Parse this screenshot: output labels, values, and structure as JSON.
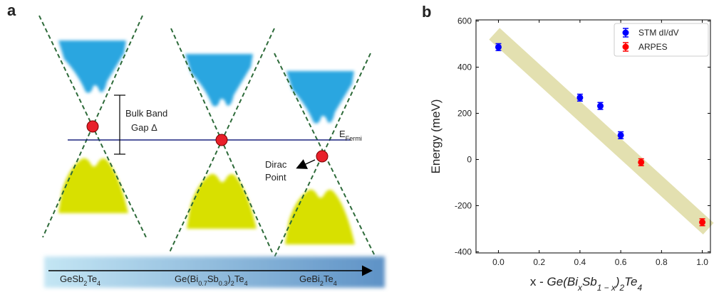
{
  "panel_a": {
    "label": "a",
    "gap_label": [
      "Bulk Band",
      "Gap Δ"
    ],
    "fermi_label": [
      "E",
      "Fermi"
    ],
    "dirac_label": [
      "Dirac",
      "Point"
    ],
    "materials": [
      [
        "GeSb",
        "2",
        "Te",
        "4"
      ],
      [
        "Ge(Bi",
        "0.7",
        "Sb",
        "0.3",
        ")",
        "2",
        "Te",
        "4"
      ],
      [
        "GeBi",
        "2",
        "Te",
        "4"
      ]
    ]
  },
  "chart_data": {
    "type": "scatter",
    "label": "b",
    "ylabel": "Energy (meV)",
    "xlabel": {
      "plain": "x - ",
      "formula": [
        "Ge(Bi",
        "x",
        "Sb",
        "1 − x",
        ")",
        "2",
        "Te",
        "4"
      ]
    },
    "series": [
      {
        "name": "STM dI/dV",
        "color": "#0000ff",
        "x": [
          0.0,
          0.4,
          0.5,
          0.6
        ],
        "values": [
          487,
          268,
          232,
          105
        ],
        "errors": [
          15,
          15,
          15,
          15
        ]
      },
      {
        "name": "ARPES",
        "color": "#ff0000",
        "x": [
          0.7,
          1.0
        ],
        "values": [
          -12,
          -272
        ],
        "errors": [
          15,
          15
        ]
      }
    ],
    "trend": {
      "color": "#e3e0b0",
      "x": [
        -0.02,
        1.03
      ],
      "values": [
        545,
        -300
      ]
    },
    "xlim": [
      -0.11,
      1.04
    ],
    "ylim": [
      -405,
      605
    ],
    "xticks": [
      {
        "value": 0,
        "label": "0.0"
      },
      0.2,
      0.4,
      0.6,
      0.8,
      {
        "value": 1,
        "label": "1.0"
      }
    ],
    "yticks": [
      -400,
      -200,
      0,
      200,
      400,
      600
    ],
    "legend": "upper right"
  }
}
